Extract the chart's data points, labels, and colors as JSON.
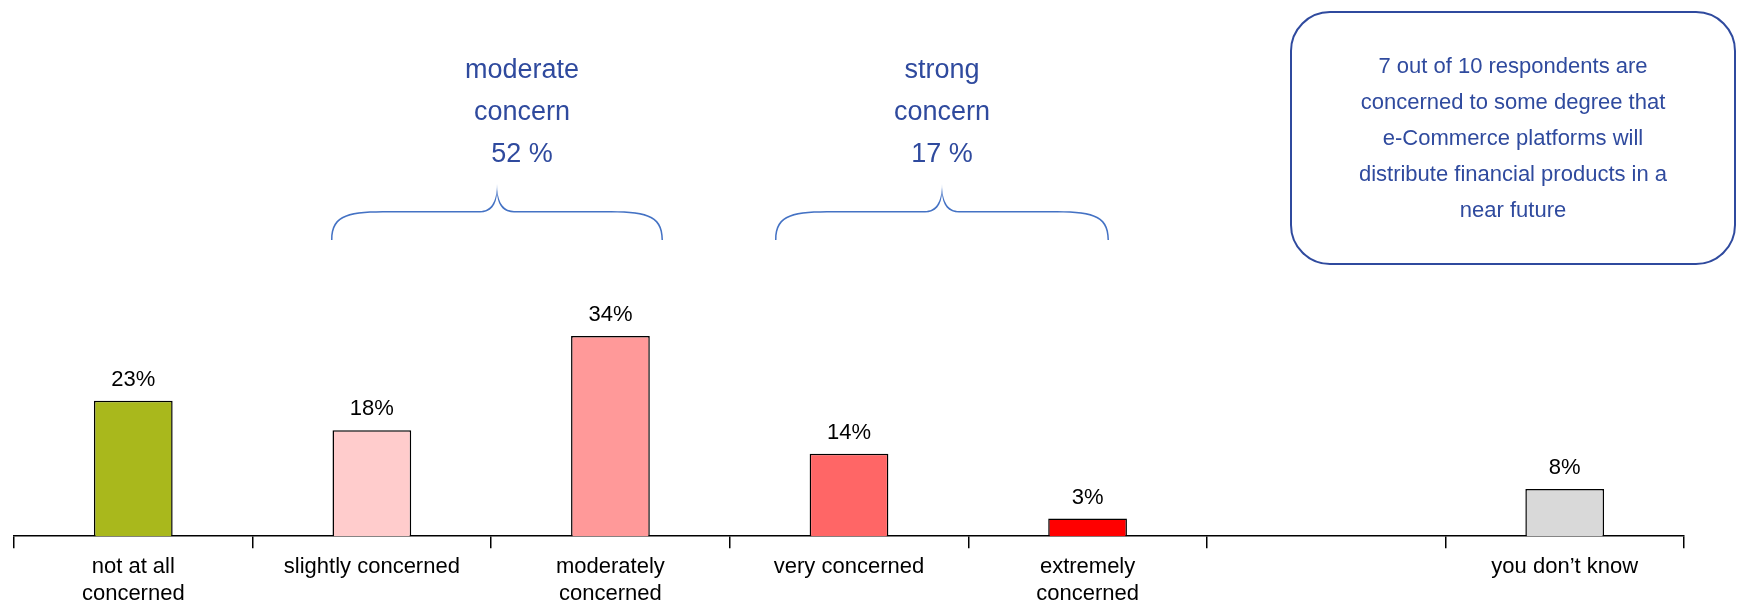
{
  "chart_data": {
    "type": "bar",
    "categories": [
      "not at all concerned",
      "slightly concerned",
      "moderately concerned",
      "very concerned",
      "extremely concerned",
      null,
      "you don’t know"
    ],
    "values": [
      23,
      18,
      34,
      14,
      3,
      null,
      8
    ],
    "colors": [
      "#a9b81c",
      "#ffcccc",
      "#ff9999",
      "#ff6666",
      "#ff0000",
      "#ffffff",
      "#d9d9d9"
    ],
    "value_labels": [
      "23%",
      "18%",
      "34%",
      "14%",
      "3%",
      null,
      "8%"
    ],
    "annotations": [
      "moderate concern 52 %",
      "strong concern 17 %",
      "7 out of 10 respondents are concerned to some degree that e-Commerce platforms will distribute financial products in a near future"
    ],
    "grid": false,
    "legend": false
  }
}
